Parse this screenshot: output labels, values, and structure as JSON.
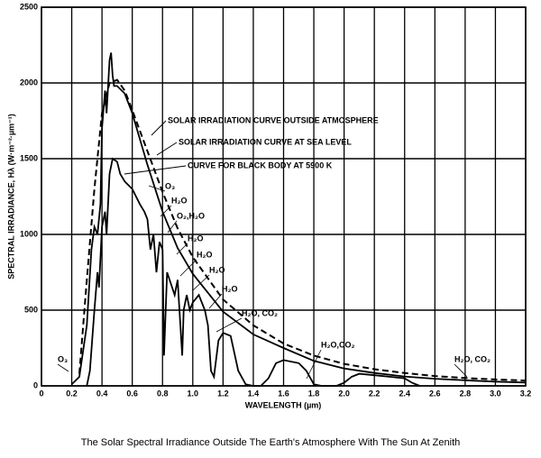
{
  "chart_data": {
    "type": "line",
    "caption": "The Solar Spectral Irradiance Outside The Earth's Atmosphere With The Sun At Zenith",
    "xlabel": "WAVELENGTH (µm)",
    "ylabel": "SPECTRAL IRRADIANCE, Hλ (W·m⁻²·µm⁻¹)",
    "xlim": [
      0,
      3.2
    ],
    "ylim": [
      0,
      2500
    ],
    "xticks": [
      0,
      0.2,
      0.4,
      0.6,
      0.8,
      {
        "value": 1,
        "label": "1.0"
      },
      1.2,
      1.4,
      1.6,
      1.8,
      {
        "value": 2,
        "label": "2.0"
      },
      2.2,
      2.4,
      2.6,
      2.8,
      {
        "value": 3,
        "label": "3.0"
      },
      3.2
    ],
    "yticks": [
      0,
      500,
      1000,
      1500,
      2000,
      2500
    ],
    "grid": true,
    "series": [
      {
        "name": "SOLAR IRRADIATION CURVE OUTSIDE ATMOSPHERE",
        "color": "#000000",
        "dash": false,
        "x": [
          0.2,
          0.25,
          0.3,
          0.33,
          0.35,
          0.37,
          0.39,
          0.4,
          0.42,
          0.43,
          0.45,
          0.46,
          0.47,
          0.48,
          0.5,
          0.55,
          0.6,
          0.7,
          0.8,
          0.9,
          1.0,
          1.2,
          1.4,
          1.6,
          1.8,
          2.0,
          2.2,
          2.4,
          2.6,
          2.8,
          3.0,
          3.2
        ],
        "values": [
          10,
          60,
          400,
          900,
          1050,
          1000,
          1200,
          1700,
          1950,
          1800,
          2150,
          2200,
          2050,
          1980,
          1980,
          1930,
          1800,
          1460,
          1150,
          910,
          740,
          490,
          340,
          250,
          165,
          115,
          85,
          62,
          47,
          37,
          28,
          22
        ]
      },
      {
        "name": "SOLAR IRRADIATION CURVE AT SEA LEVEL",
        "color": "#000000",
        "dash": false,
        "x": [
          0.3,
          0.32,
          0.35,
          0.37,
          0.38,
          0.4,
          0.42,
          0.43,
          0.45,
          0.47,
          0.5,
          0.52,
          0.55,
          0.6,
          0.65,
          0.68,
          0.7,
          0.72,
          0.74,
          0.76,
          0.78,
          0.8,
          0.81,
          0.83,
          0.88,
          0.9,
          0.93,
          0.94,
          0.96,
          0.98,
          1.0,
          1.04,
          1.08,
          1.1,
          1.12,
          1.14,
          1.17,
          1.2,
          1.25,
          1.3,
          1.35,
          1.4,
          1.45,
          1.5,
          1.55,
          1.6,
          1.7,
          1.75,
          1.8,
          1.85,
          1.95,
          2.0,
          2.05,
          2.1,
          2.2,
          2.3,
          2.4,
          2.45,
          2.5
        ],
        "values": [
          0,
          100,
          500,
          750,
          650,
          1050,
          1150,
          1000,
          1400,
          1500,
          1480,
          1400,
          1350,
          1300,
          1200,
          1150,
          1100,
          900,
          1000,
          750,
          950,
          900,
          200,
          750,
          600,
          700,
          200,
          500,
          600,
          500,
          550,
          600,
          500,
          400,
          100,
          60,
          300,
          350,
          330,
          100,
          10,
          0,
          0,
          50,
          150,
          170,
          150,
          100,
          10,
          0,
          0,
          20,
          60,
          80,
          70,
          60,
          50,
          20,
          0
        ]
      },
      {
        "name": "CURVE FOR BLACK BODY AT 5900 K",
        "color": "#000000",
        "dash": true,
        "x": [
          0.25,
          0.3,
          0.35,
          0.4,
          0.45,
          0.5,
          0.55,
          0.6,
          0.7,
          0.8,
          0.9,
          1.0,
          1.2,
          1.4,
          1.6,
          1.8,
          2.0,
          2.2,
          2.4,
          2.6,
          2.8,
          3.0,
          3.2
        ],
        "values": [
          80,
          700,
          1300,
          1800,
          2000,
          2020,
          1950,
          1820,
          1550,
          1280,
          1040,
          850,
          570,
          400,
          280,
          200,
          145,
          110,
          85,
          65,
          52,
          42,
          35
        ]
      }
    ],
    "annotations": [
      "O₃",
      "H₂O",
      "O₂,H₂O",
      "H₂O",
      "H₂O",
      "H₂O",
      "H₂O",
      "H₂O, CO₂",
      "H₂O,CO₂",
      "H₂O, CO₂",
      "O₃"
    ]
  }
}
